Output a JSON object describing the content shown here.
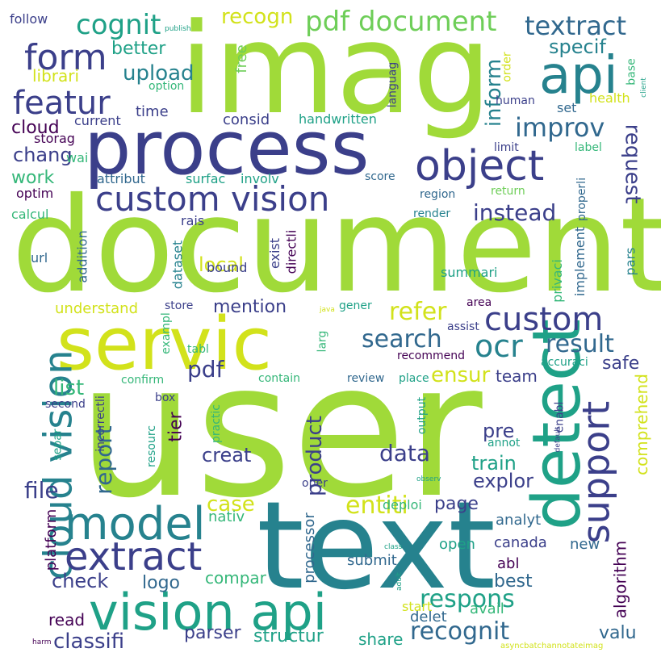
{
  "palette": {
    "purple": "#440154",
    "indigo": "#3b3f8a",
    "blue": "#31688e",
    "teal": "#26828e",
    "green": "#1fa187",
    "lightgreen": "#35b779",
    "lime": "#6ece58",
    "yellowgreen": "#a0da39",
    "yellow": "#d2e21b"
  },
  "words": [
    {
      "text": "user",
      "color": "yellowgreen"
    },
    {
      "text": "document",
      "color": "yellowgreen"
    },
    {
      "text": "imag",
      "color": "yellowgreen"
    },
    {
      "text": "text",
      "color": "teal"
    },
    {
      "text": "process",
      "color": "indigo"
    },
    {
      "text": "servic",
      "color": "yellow"
    },
    {
      "text": "detect",
      "color": "green"
    },
    {
      "text": "vision api",
      "color": "green"
    },
    {
      "text": "object",
      "color": "indigo"
    },
    {
      "text": "custom vision",
      "color": "indigo"
    },
    {
      "text": "cloud vision",
      "color": "teal"
    },
    {
      "text": "api",
      "color": "teal"
    },
    {
      "text": "model",
      "color": "teal"
    },
    {
      "text": "extract",
      "color": "indigo"
    },
    {
      "text": "support",
      "color": "indigo"
    },
    {
      "text": "custom",
      "color": "indigo"
    },
    {
      "text": "form",
      "color": "indigo"
    },
    {
      "text": "featur",
      "color": "indigo"
    },
    {
      "text": "pdf document",
      "color": "lime"
    },
    {
      "text": "cognit",
      "color": "green"
    },
    {
      "text": "textract",
      "color": "blue"
    },
    {
      "text": "recogn",
      "color": "yellow"
    },
    {
      "text": "ocr",
      "color": "teal"
    },
    {
      "text": "result",
      "color": "blue"
    },
    {
      "text": "search",
      "color": "blue"
    },
    {
      "text": "improv",
      "color": "blue"
    },
    {
      "text": "refer",
      "color": "yellow"
    },
    {
      "text": "entiti",
      "color": "yellow"
    },
    {
      "text": "respons",
      "color": "green"
    },
    {
      "text": "recognit",
      "color": "blue"
    },
    {
      "text": "instead",
      "color": "indigo"
    },
    {
      "text": "request",
      "color": "indigo"
    },
    {
      "text": "inform",
      "color": "teal"
    },
    {
      "text": "ensur",
      "color": "yellow"
    },
    {
      "text": "specif",
      "color": "teal"
    },
    {
      "text": "upload",
      "color": "teal"
    },
    {
      "text": "better",
      "color": "green"
    },
    {
      "text": "librari",
      "color": "yellow"
    },
    {
      "text": "cloud",
      "color": "purple"
    },
    {
      "text": "chang",
      "color": "indigo"
    },
    {
      "text": "work",
      "color": "lightgreen"
    },
    {
      "text": "local",
      "color": "yellow"
    },
    {
      "text": "pdf",
      "color": "indigo"
    },
    {
      "text": "report",
      "color": "blue"
    },
    {
      "text": "file",
      "color": "indigo"
    },
    {
      "text": "list",
      "color": "lightgreen"
    },
    {
      "text": "data",
      "color": "indigo"
    },
    {
      "text": "product",
      "color": "indigo"
    },
    {
      "text": "creat",
      "color": "indigo"
    },
    {
      "text": "mention",
      "color": "indigo"
    },
    {
      "text": "understand",
      "color": "yellow"
    },
    {
      "text": "classifi",
      "color": "indigo"
    },
    {
      "text": "structur",
      "color": "green"
    },
    {
      "text": "parser",
      "color": "indigo"
    },
    {
      "text": "case",
      "color": "yellow"
    },
    {
      "text": "check",
      "color": "indigo"
    },
    {
      "text": "train",
      "color": "green"
    },
    {
      "text": "explor",
      "color": "indigo"
    },
    {
      "text": "pre",
      "color": "indigo"
    },
    {
      "text": "page",
      "color": "indigo"
    },
    {
      "text": "team",
      "color": "indigo"
    },
    {
      "text": "safe",
      "color": "indigo"
    },
    {
      "text": "comprehend",
      "color": "yellow"
    },
    {
      "text": "algorithm",
      "color": "purple"
    },
    {
      "text": "valu",
      "color": "blue"
    },
    {
      "text": "tier",
      "color": "purple"
    },
    {
      "text": "read",
      "color": "purple"
    },
    {
      "text": "share",
      "color": "green"
    },
    {
      "text": "delet",
      "color": "blue"
    },
    {
      "text": "logo",
      "color": "blue"
    },
    {
      "text": "compar",
      "color": "lightgreen"
    },
    {
      "text": "best",
      "color": "blue"
    },
    {
      "text": "canada",
      "color": "indigo"
    },
    {
      "text": "open",
      "color": "green"
    },
    {
      "text": "submit",
      "color": "blue"
    },
    {
      "text": "processor",
      "color": "blue"
    },
    {
      "text": "platform",
      "color": "purple"
    },
    {
      "text": "nativ",
      "color": "lightgreen"
    },
    {
      "text": "deploi",
      "color": "lightgreen"
    },
    {
      "text": "analyt",
      "color": "blue"
    },
    {
      "text": "abl",
      "color": "purple"
    },
    {
      "text": "new",
      "color": "blue"
    },
    {
      "text": "avail",
      "color": "lightgreen"
    },
    {
      "text": "start",
      "color": "yellow"
    },
    {
      "text": "time",
      "color": "indigo"
    },
    {
      "text": "consid",
      "color": "indigo"
    },
    {
      "text": "handwritten",
      "color": "green"
    },
    {
      "text": "storag",
      "color": "purple"
    },
    {
      "text": "current",
      "color": "indigo"
    },
    {
      "text": "attribut",
      "color": "blue"
    },
    {
      "text": "surfac",
      "color": "green"
    },
    {
      "text": "involv",
      "color": "green"
    },
    {
      "text": "wai",
      "color": "lightgreen"
    },
    {
      "text": "optim",
      "color": "purple"
    },
    {
      "text": "calcul",
      "color": "lightgreen"
    },
    {
      "text": "rais",
      "color": "indigo"
    },
    {
      "text": "bound",
      "color": "indigo"
    },
    {
      "text": "url",
      "color": "blue"
    },
    {
      "text": "addition",
      "color": "blue"
    },
    {
      "text": "dataset",
      "color": "teal"
    },
    {
      "text": "exist",
      "color": "indigo"
    },
    {
      "text": "directli",
      "color": "purple"
    },
    {
      "text": "summari",
      "color": "green"
    },
    {
      "text": "privaci",
      "color": "lightgreen"
    },
    {
      "text": "implement",
      "color": "blue"
    },
    {
      "text": "pars",
      "color": "teal"
    },
    {
      "text": "store",
      "color": "indigo"
    },
    {
      "text": "gener",
      "color": "green"
    },
    {
      "text": "area",
      "color": "purple"
    },
    {
      "text": "assist",
      "color": "indigo"
    },
    {
      "text": "accuraci",
      "color": "green"
    },
    {
      "text": "recommend",
      "color": "purple"
    },
    {
      "text": "review",
      "color": "blue"
    },
    {
      "text": "place",
      "color": "green"
    },
    {
      "text": "contain",
      "color": "lightgreen"
    },
    {
      "text": "confirm",
      "color": "lightgreen"
    },
    {
      "text": "tabl",
      "color": "lightgreen"
    },
    {
      "text": "exampl",
      "color": "lightgreen"
    },
    {
      "text": "larg",
      "color": "lightgreen"
    },
    {
      "text": "incorrectli",
      "color": "indigo"
    },
    {
      "text": "separ",
      "color": "green"
    },
    {
      "text": "second",
      "color": "indigo"
    },
    {
      "text": "box",
      "color": "indigo"
    },
    {
      "text": "practic",
      "color": "lightgreen"
    },
    {
      "text": "resourc",
      "color": "green"
    },
    {
      "text": "output",
      "color": "green"
    },
    {
      "text": "enabl",
      "color": "indigo"
    },
    {
      "text": "annot",
      "color": "green"
    },
    {
      "text": "oper",
      "color": "indigo"
    },
    {
      "text": "observ",
      "color": "green"
    },
    {
      "text": "default",
      "color": "indigo"
    },
    {
      "text": "class",
      "color": "green"
    },
    {
      "text": "adult",
      "color": "green"
    },
    {
      "text": "asyncbatchannotateimag",
      "color": "yellow"
    },
    {
      "text": "java",
      "color": "yellow"
    },
    {
      "text": "harm",
      "color": "purple"
    },
    {
      "text": "follow",
      "color": "indigo"
    },
    {
      "text": "publish",
      "color": "green"
    },
    {
      "text": "free",
      "color": "lime"
    },
    {
      "text": "languag",
      "color": "indigo"
    },
    {
      "text": "option",
      "color": "lightgreen"
    },
    {
      "text": "human",
      "color": "indigo"
    },
    {
      "text": "order",
      "color": "yellow"
    },
    {
      "text": "base",
      "color": "lightgreen"
    },
    {
      "text": "client",
      "color": "green"
    },
    {
      "text": "health",
      "color": "yellow"
    },
    {
      "text": "set",
      "color": "blue"
    },
    {
      "text": "limit",
      "color": "indigo"
    },
    {
      "text": "label",
      "color": "lightgreen"
    },
    {
      "text": "score",
      "color": "blue"
    },
    {
      "text": "return",
      "color": "lime"
    },
    {
      "text": "properli",
      "color": "blue"
    },
    {
      "text": "region",
      "color": "blue"
    },
    {
      "text": "render",
      "color": "teal"
    }
  ]
}
